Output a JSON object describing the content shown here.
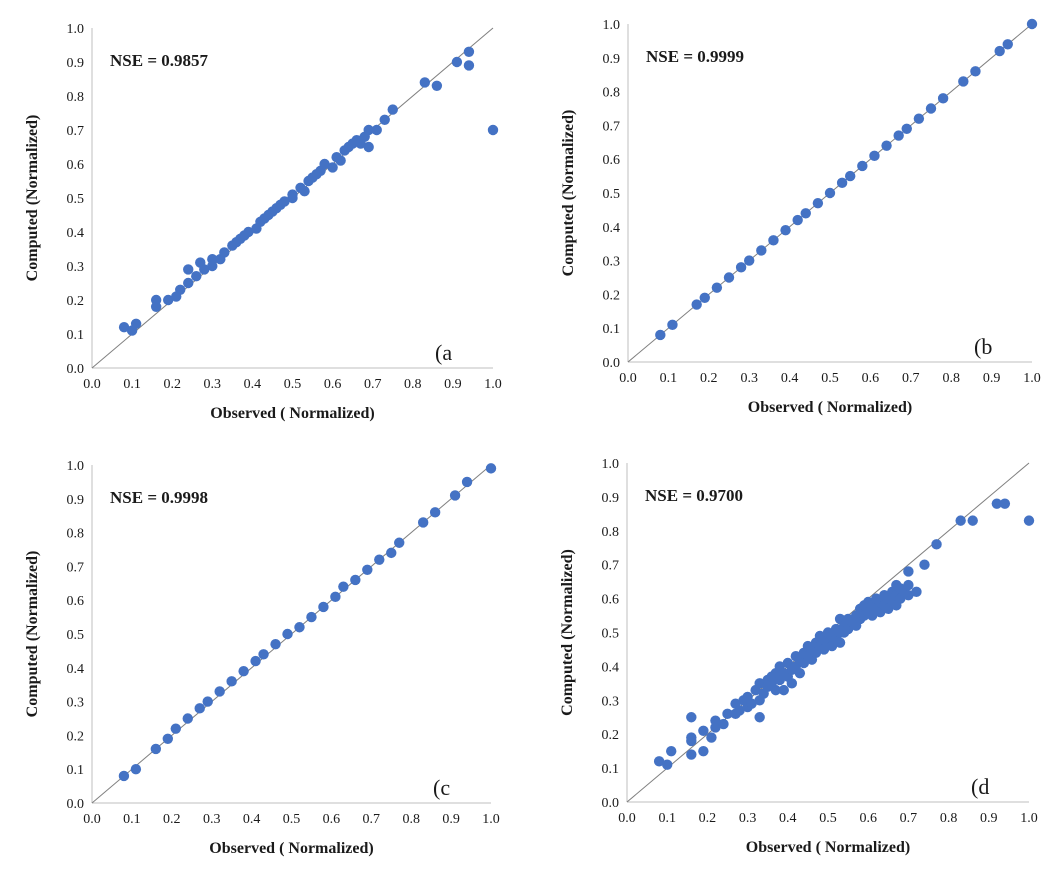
{
  "colors": {
    "point": "#4472c4",
    "line": "#7f7f7f",
    "axis": "#bfbfbf"
  },
  "chart_data": [
    {
      "type": "scatter",
      "panel_label": "(a",
      "annotation": "NSE = 0.9857",
      "xlabel": "Observed ( Normalized)",
      "ylabel": "Computed  (Normalized)",
      "xlim": [
        0,
        1
      ],
      "ylim": [
        0,
        1
      ],
      "xticks": [
        "0.0",
        "0.1",
        "0.2",
        "0.3",
        "0.4",
        "0.5",
        "0.6",
        "0.7",
        "0.8",
        "0.9",
        "1.0"
      ],
      "yticks": [
        "0.0",
        "0.1",
        "0.2",
        "0.3",
        "0.4",
        "0.5",
        "0.6",
        "0.7",
        "0.8",
        "0.9",
        "1.0"
      ],
      "reference_line": "1:1",
      "points": [
        [
          0.08,
          0.12
        ],
        [
          0.1,
          0.11
        ],
        [
          0.11,
          0.13
        ],
        [
          0.16,
          0.18
        ],
        [
          0.16,
          0.2
        ],
        [
          0.19,
          0.2
        ],
        [
          0.21,
          0.21
        ],
        [
          0.22,
          0.23
        ],
        [
          0.24,
          0.25
        ],
        [
          0.24,
          0.29
        ],
        [
          0.26,
          0.27
        ],
        [
          0.27,
          0.31
        ],
        [
          0.28,
          0.29
        ],
        [
          0.3,
          0.3
        ],
        [
          0.3,
          0.32
        ],
        [
          0.32,
          0.32
        ],
        [
          0.33,
          0.34
        ],
        [
          0.35,
          0.36
        ],
        [
          0.36,
          0.37
        ],
        [
          0.37,
          0.38
        ],
        [
          0.38,
          0.39
        ],
        [
          0.39,
          0.4
        ],
        [
          0.41,
          0.41
        ],
        [
          0.42,
          0.43
        ],
        [
          0.43,
          0.44
        ],
        [
          0.44,
          0.45
        ],
        [
          0.45,
          0.46
        ],
        [
          0.46,
          0.47
        ],
        [
          0.47,
          0.48
        ],
        [
          0.48,
          0.49
        ],
        [
          0.5,
          0.5
        ],
        [
          0.5,
          0.51
        ],
        [
          0.52,
          0.53
        ],
        [
          0.53,
          0.52
        ],
        [
          0.54,
          0.55
        ],
        [
          0.55,
          0.56
        ],
        [
          0.56,
          0.57
        ],
        [
          0.57,
          0.58
        ],
        [
          0.58,
          0.6
        ],
        [
          0.6,
          0.59
        ],
        [
          0.61,
          0.62
        ],
        [
          0.62,
          0.61
        ],
        [
          0.63,
          0.64
        ],
        [
          0.64,
          0.65
        ],
        [
          0.65,
          0.66
        ],
        [
          0.66,
          0.67
        ],
        [
          0.67,
          0.66
        ],
        [
          0.68,
          0.68
        ],
        [
          0.69,
          0.7
        ],
        [
          0.69,
          0.65
        ],
        [
          0.71,
          0.7
        ],
        [
          0.73,
          0.73
        ],
        [
          0.75,
          0.76
        ],
        [
          0.83,
          0.84
        ],
        [
          0.86,
          0.83
        ],
        [
          0.91,
          0.9
        ],
        [
          0.94,
          0.93
        ],
        [
          0.94,
          0.89
        ],
        [
          1.0,
          0.7
        ]
      ]
    },
    {
      "type": "scatter",
      "panel_label": "(b",
      "annotation": "NSE = 0.9999",
      "xlabel": "Observed ( Normalized)",
      "ylabel": "Computed  (Normalized)",
      "xlim": [
        0,
        1
      ],
      "ylim": [
        0,
        1
      ],
      "xticks": [
        "0.0",
        "0.1",
        "0.2",
        "0.3",
        "0.4",
        "0.5",
        "0.6",
        "0.7",
        "0.8",
        "0.9",
        "1.0"
      ],
      "yticks": [
        "0.0",
        "0.1",
        "0.2",
        "0.3",
        "0.4",
        "0.5",
        "0.6",
        "0.7",
        "0.8",
        "0.9",
        "1.0"
      ],
      "reference_line": "1:1",
      "points": [
        [
          0.08,
          0.08
        ],
        [
          0.11,
          0.11
        ],
        [
          0.17,
          0.17
        ],
        [
          0.19,
          0.19
        ],
        [
          0.22,
          0.22
        ],
        [
          0.25,
          0.25
        ],
        [
          0.28,
          0.28
        ],
        [
          0.3,
          0.3
        ],
        [
          0.33,
          0.33
        ],
        [
          0.36,
          0.36
        ],
        [
          0.39,
          0.39
        ],
        [
          0.42,
          0.42
        ],
        [
          0.44,
          0.44
        ],
        [
          0.47,
          0.47
        ],
        [
          0.5,
          0.5
        ],
        [
          0.53,
          0.53
        ],
        [
          0.55,
          0.55
        ],
        [
          0.58,
          0.58
        ],
        [
          0.61,
          0.61
        ],
        [
          0.64,
          0.64
        ],
        [
          0.67,
          0.67
        ],
        [
          0.69,
          0.69
        ],
        [
          0.72,
          0.72
        ],
        [
          0.75,
          0.75
        ],
        [
          0.78,
          0.78
        ],
        [
          0.83,
          0.83
        ],
        [
          0.86,
          0.86
        ],
        [
          0.92,
          0.92
        ],
        [
          0.94,
          0.94
        ],
        [
          1.0,
          1.0
        ]
      ]
    },
    {
      "type": "scatter",
      "panel_label": "(c",
      "annotation": "NSE = 0.9998",
      "xlabel": "Observed ( Normalized)",
      "ylabel": "Computed  (Normalized)",
      "xlim": [
        0,
        1
      ],
      "ylim": [
        0,
        1
      ],
      "xticks": [
        "0.0",
        "0.1",
        "0.2",
        "0.3",
        "0.4",
        "0.5",
        "0.6",
        "0.7",
        "0.8",
        "0.9",
        "1.0"
      ],
      "yticks": [
        "0.0",
        "0.1",
        "0.2",
        "0.3",
        "0.4",
        "0.5",
        "0.6",
        "0.7",
        "0.8",
        "0.9",
        "1.0"
      ],
      "reference_line": "1:1",
      "points": [
        [
          0.08,
          0.08
        ],
        [
          0.11,
          0.1
        ],
        [
          0.16,
          0.16
        ],
        [
          0.19,
          0.19
        ],
        [
          0.21,
          0.22
        ],
        [
          0.24,
          0.25
        ],
        [
          0.27,
          0.28
        ],
        [
          0.29,
          0.3
        ],
        [
          0.32,
          0.33
        ],
        [
          0.35,
          0.36
        ],
        [
          0.38,
          0.39
        ],
        [
          0.41,
          0.42
        ],
        [
          0.43,
          0.44
        ],
        [
          0.46,
          0.47
        ],
        [
          0.49,
          0.5
        ],
        [
          0.52,
          0.52
        ],
        [
          0.55,
          0.55
        ],
        [
          0.58,
          0.58
        ],
        [
          0.61,
          0.61
        ],
        [
          0.63,
          0.64
        ],
        [
          0.66,
          0.66
        ],
        [
          0.69,
          0.69
        ],
        [
          0.72,
          0.72
        ],
        [
          0.75,
          0.74
        ],
        [
          0.77,
          0.77
        ],
        [
          0.83,
          0.83
        ],
        [
          0.86,
          0.86
        ],
        [
          0.91,
          0.91
        ],
        [
          0.94,
          0.95
        ],
        [
          1.0,
          0.99
        ]
      ]
    },
    {
      "type": "scatter",
      "panel_label": "(d",
      "annotation": "NSE = 0.9700",
      "xlabel": "Observed ( Normalized)",
      "ylabel": "Computed  (Normalized)",
      "xlim": [
        0,
        1
      ],
      "ylim": [
        0,
        1
      ],
      "xticks": [
        "0.0",
        "0.1",
        "0.2",
        "0.3",
        "0.4",
        "0.5",
        "0.6",
        "0.7",
        "0.8",
        "0.9",
        "1.0"
      ],
      "yticks": [
        "0.0",
        "0.1",
        "0.2",
        "0.3",
        "0.4",
        "0.5",
        "0.6",
        "0.7",
        "0.8",
        "0.9",
        "1.0"
      ],
      "reference_line": "1:1",
      "points": [
        [
          0.08,
          0.12
        ],
        [
          0.1,
          0.11
        ],
        [
          0.11,
          0.15
        ],
        [
          0.16,
          0.14
        ],
        [
          0.16,
          0.18
        ],
        [
          0.16,
          0.19
        ],
        [
          0.16,
          0.25
        ],
        [
          0.19,
          0.15
        ],
        [
          0.19,
          0.21
        ],
        [
          0.21,
          0.19
        ],
        [
          0.22,
          0.22
        ],
        [
          0.22,
          0.24
        ],
        [
          0.24,
          0.23
        ],
        [
          0.25,
          0.26
        ],
        [
          0.27,
          0.26
        ],
        [
          0.27,
          0.29
        ],
        [
          0.28,
          0.27
        ],
        [
          0.29,
          0.3
        ],
        [
          0.3,
          0.28
        ],
        [
          0.3,
          0.31
        ],
        [
          0.31,
          0.29
        ],
        [
          0.32,
          0.33
        ],
        [
          0.33,
          0.3
        ],
        [
          0.33,
          0.35
        ],
        [
          0.33,
          0.25
        ],
        [
          0.34,
          0.32
        ],
        [
          0.35,
          0.34
        ],
        [
          0.35,
          0.36
        ],
        [
          0.36,
          0.35
        ],
        [
          0.36,
          0.37
        ],
        [
          0.37,
          0.33
        ],
        [
          0.37,
          0.38
        ],
        [
          0.38,
          0.36
        ],
        [
          0.38,
          0.4
        ],
        [
          0.39,
          0.33
        ],
        [
          0.39,
          0.38
        ],
        [
          0.4,
          0.37
        ],
        [
          0.4,
          0.41
        ],
        [
          0.41,
          0.35
        ],
        [
          0.41,
          0.39
        ],
        [
          0.42,
          0.4
        ],
        [
          0.42,
          0.43
        ],
        [
          0.43,
          0.38
        ],
        [
          0.43,
          0.42
        ],
        [
          0.44,
          0.41
        ],
        [
          0.44,
          0.44
        ],
        [
          0.45,
          0.43
        ],
        [
          0.45,
          0.46
        ],
        [
          0.46,
          0.42
        ],
        [
          0.46,
          0.45
        ],
        [
          0.47,
          0.44
        ],
        [
          0.47,
          0.47
        ],
        [
          0.48,
          0.46
        ],
        [
          0.48,
          0.49
        ],
        [
          0.49,
          0.45
        ],
        [
          0.49,
          0.48
        ],
        [
          0.5,
          0.47
        ],
        [
          0.5,
          0.5
        ],
        [
          0.51,
          0.46
        ],
        [
          0.51,
          0.49
        ],
        [
          0.52,
          0.48
        ],
        [
          0.52,
          0.51
        ],
        [
          0.53,
          0.47
        ],
        [
          0.53,
          0.5
        ],
        [
          0.53,
          0.54
        ],
        [
          0.54,
          0.5
        ],
        [
          0.54,
          0.52
        ],
        [
          0.55,
          0.51
        ],
        [
          0.55,
          0.54
        ],
        [
          0.56,
          0.53
        ],
        [
          0.57,
          0.52
        ],
        [
          0.57,
          0.55
        ],
        [
          0.58,
          0.54
        ],
        [
          0.58,
          0.57
        ],
        [
          0.59,
          0.55
        ],
        [
          0.59,
          0.58
        ],
        [
          0.6,
          0.56
        ],
        [
          0.6,
          0.59
        ],
        [
          0.61,
          0.55
        ],
        [
          0.61,
          0.58
        ],
        [
          0.62,
          0.57
        ],
        [
          0.62,
          0.6
        ],
        [
          0.63,
          0.56
        ],
        [
          0.63,
          0.59
        ],
        [
          0.64,
          0.58
        ],
        [
          0.64,
          0.61
        ],
        [
          0.65,
          0.57
        ],
        [
          0.65,
          0.6
        ],
        [
          0.66,
          0.59
        ],
        [
          0.66,
          0.62
        ],
        [
          0.67,
          0.58
        ],
        [
          0.67,
          0.61
        ],
        [
          0.67,
          0.64
        ],
        [
          0.68,
          0.6
        ],
        [
          0.68,
          0.63
        ],
        [
          0.69,
          0.62
        ],
        [
          0.7,
          0.61
        ],
        [
          0.7,
          0.64
        ],
        [
          0.7,
          0.68
        ],
        [
          0.72,
          0.62
        ],
        [
          0.74,
          0.7
        ],
        [
          0.77,
          0.76
        ],
        [
          0.83,
          0.83
        ],
        [
          0.86,
          0.83
        ],
        [
          0.92,
          0.88
        ],
        [
          0.94,
          0.88
        ],
        [
          1.0,
          0.83
        ]
      ]
    }
  ]
}
